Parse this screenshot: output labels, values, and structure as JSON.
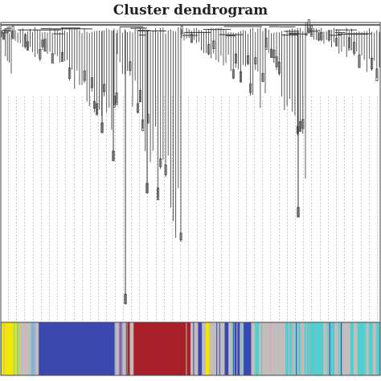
{
  "title": "Cluster dendrogram",
  "colors": {
    "line": "#333333",
    "guide": "#9a9a9a",
    "yellow": "#f2e600",
    "grey": "#c2bcbc",
    "blue": "#3a48b0",
    "red": "#a82029",
    "turquoise": "#4fd0cf",
    "lightblue": "#8ab0d8",
    "pink": "#e0a0b0",
    "darkred": "#8b1a1a",
    "green": "#3a8a3a",
    "black": "#222222"
  },
  "module_colors": [
    "yellow",
    "yellow",
    "yellow",
    "yellow",
    "yellow",
    "grey",
    "grey",
    "grey",
    "lightblue",
    "grey",
    "blue",
    "blue",
    "blue",
    "blue",
    "blue",
    "blue",
    "blue",
    "blue",
    "blue",
    "blue",
    "blue",
    "blue",
    "blue",
    "blue",
    "blue",
    "blue",
    "blue",
    "blue",
    "blue",
    "blue",
    "grey",
    "pink",
    "grey",
    "red",
    "grey",
    "red",
    "red",
    "red",
    "red",
    "red",
    "red",
    "red",
    "red",
    "red",
    "red",
    "red",
    "red",
    "red",
    "red",
    "red",
    "grey",
    "grey",
    "blue",
    "grey",
    "yellow",
    "grey",
    "grey",
    "grey",
    "grey",
    "blue",
    "grey",
    "blue",
    "blue",
    "grey",
    "blue",
    "blue",
    "grey",
    "turquoise",
    "grey",
    "grey",
    "grey",
    "grey",
    "grey",
    "grey",
    "grey",
    "turquoise",
    "turquoise",
    "grey",
    "turquoise",
    "grey",
    "turquoise",
    "turquoise",
    "turquoise",
    "turquoise",
    "turquoise",
    "grey",
    "turquoise",
    "turquoise",
    "grey",
    "turquoise",
    "grey",
    "grey",
    "turquoise",
    "grey",
    "turquoise",
    "turquoise",
    "grey",
    "turquoise",
    "grey",
    "turquoise"
  ]
}
